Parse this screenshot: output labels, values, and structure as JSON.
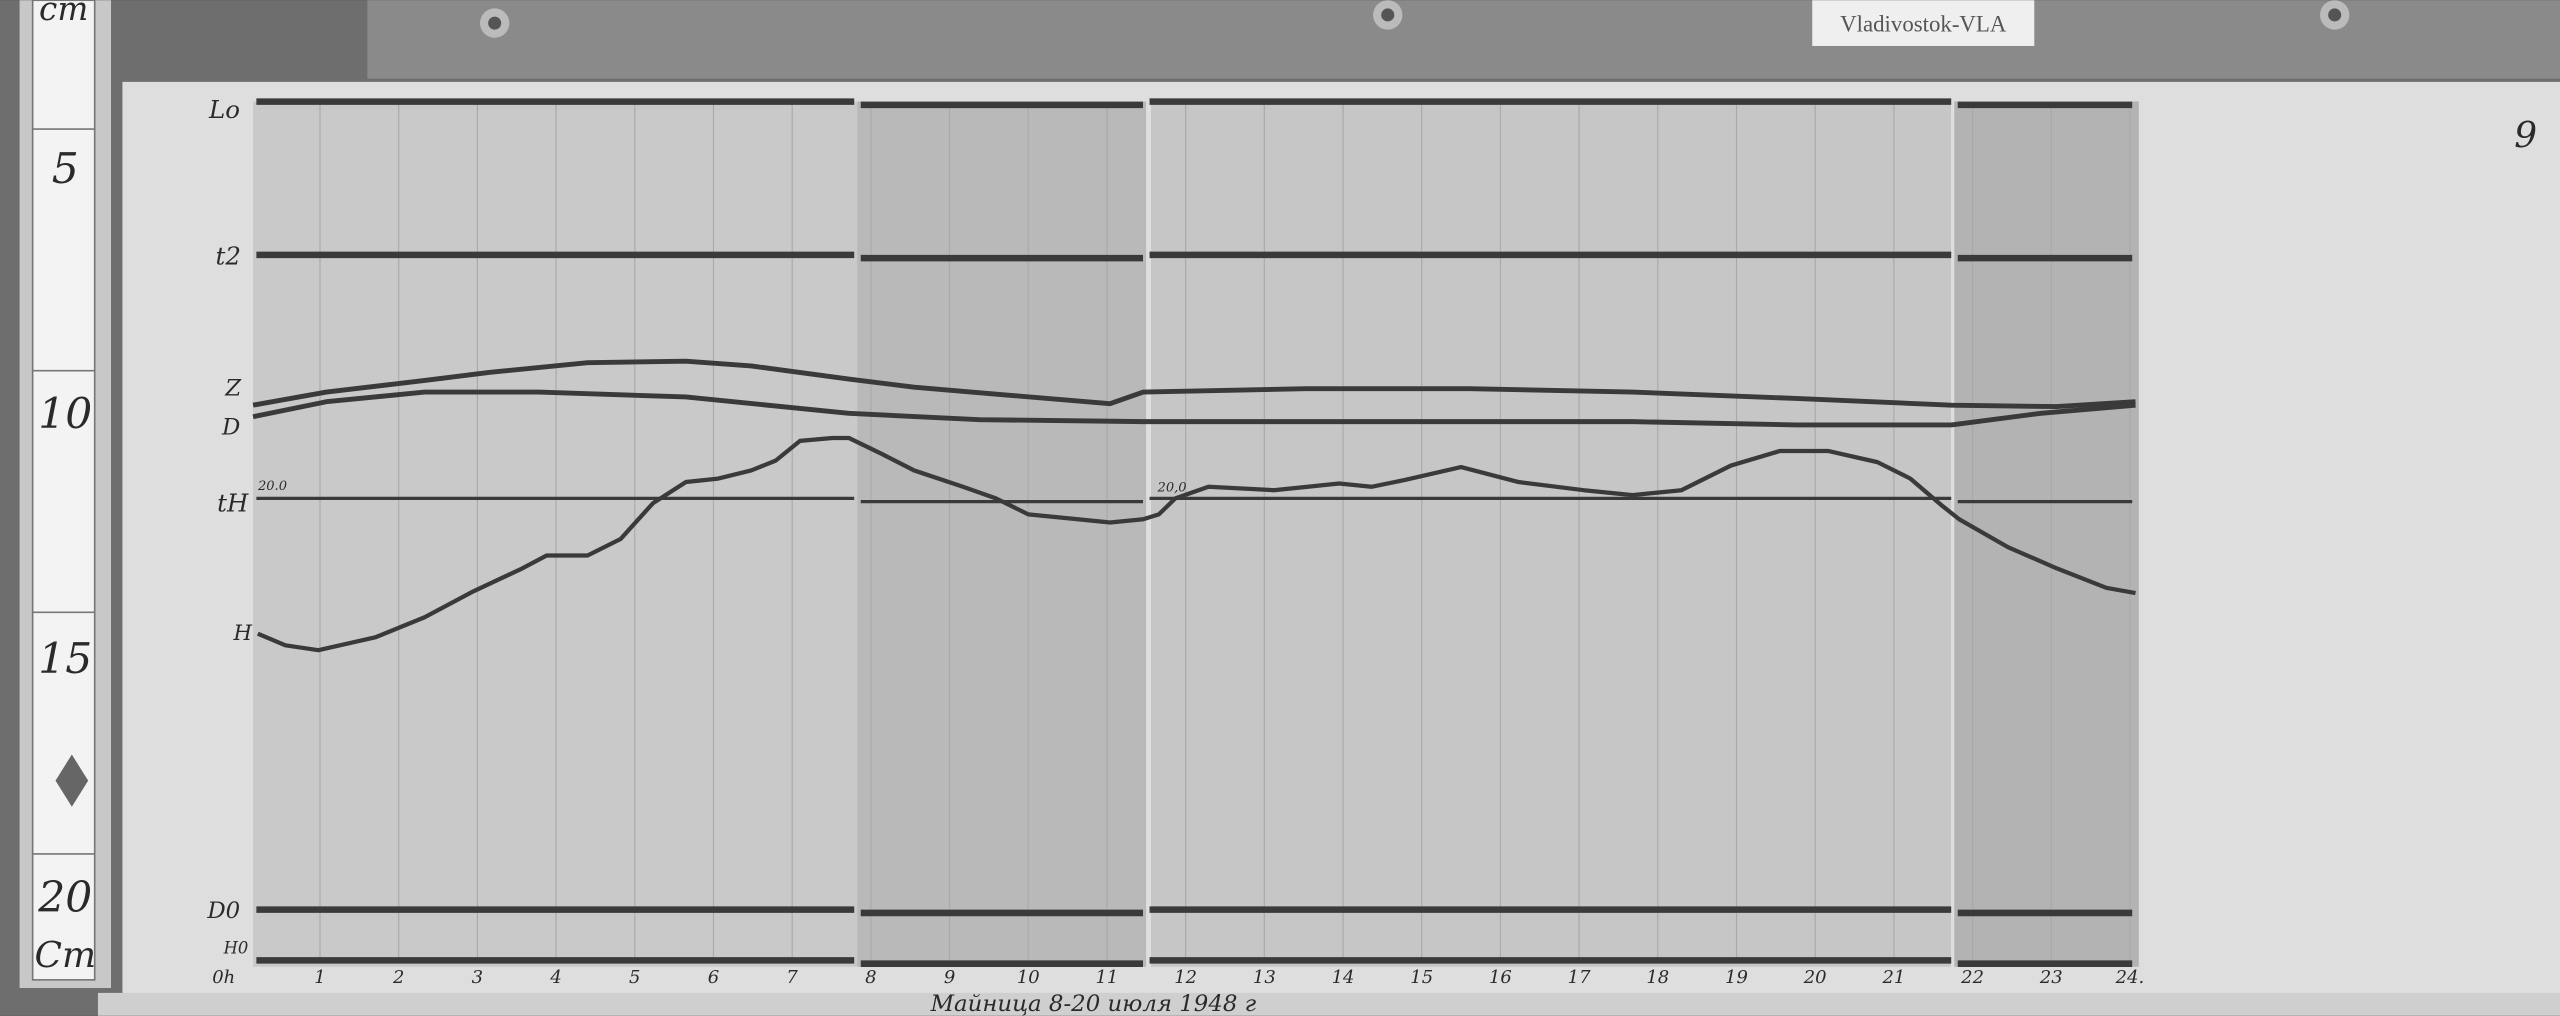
{
  "station_label": "Vladivostok-VLA",
  "sheet_number": "9",
  "ruler": {
    "unit_top": "cm",
    "unit_bottom": "Cm",
    "marks": [
      "5",
      "10",
      "15",
      "20"
    ]
  },
  "caption": "Мaйница 8-20 июля 1948 г",
  "colors": {
    "trace": "#3a3a3a",
    "paper": "#dcdcdc",
    "board": "#6e6e6e"
  },
  "chart_data": {
    "type": "line",
    "x_unit": "hour",
    "y_unit": "cm",
    "xlim": [
      0,
      24
    ],
    "ylim": [
      3,
      22
    ],
    "x_ticks": [
      "1",
      "2",
      "3",
      "4",
      "5",
      "6",
      "7",
      "8",
      "9",
      "10",
      "11",
      "12",
      "13",
      "14",
      "15",
      "16",
      "17",
      "18",
      "19",
      "20",
      "21",
      "22",
      "23",
      "24."
    ],
    "trace_labels": {
      "Lo": "Lo",
      "t2": "t2",
      "Z": "Z",
      "D": "D",
      "tH": "tH",
      "tH_value": "20.0",
      "tH_value2": "20,0",
      "H": "H",
      "D0": "D0",
      "H0": "H0",
      "time_label": "0h"
    },
    "baselines": [
      {
        "name": "Lo",
        "y": 3.72
      },
      {
        "name": "t2",
        "y": 6.89
      },
      {
        "name": "tH",
        "y": 11.93
      },
      {
        "name": "D0",
        "y": 20.44
      },
      {
        "name": "H0",
        "y": 21.49
      }
    ],
    "baseline_breaks": [
      7.83,
      11.5,
      21.77
    ],
    "series": [
      {
        "name": "H",
        "points": [
          [
            0.21,
            14.73
          ],
          [
            0.56,
            14.97
          ],
          [
            0.98,
            15.07
          ],
          [
            1.71,
            14.8
          ],
          [
            2.33,
            14.39
          ],
          [
            2.95,
            13.85
          ],
          [
            3.57,
            13.38
          ],
          [
            3.88,
            13.11
          ],
          [
            4.4,
            13.11
          ],
          [
            4.82,
            12.77
          ],
          [
            5.23,
            12.03
          ],
          [
            5.65,
            11.59
          ],
          [
            6.06,
            11.52
          ],
          [
            6.48,
            11.35
          ],
          [
            6.79,
            11.15
          ],
          [
            7.1,
            10.74
          ],
          [
            7.51,
            10.68
          ],
          [
            7.72,
            10.68
          ],
          [
            8.14,
            11.01
          ],
          [
            8.55,
            11.35
          ],
          [
            9.17,
            11.69
          ],
          [
            9.59,
            11.93
          ],
          [
            10.0,
            12.26
          ],
          [
            10.63,
            12.36
          ],
          [
            11.04,
            12.43
          ],
          [
            11.46,
            12.36
          ],
          [
            11.66,
            12.26
          ],
          [
            11.87,
            11.93
          ],
          [
            12.29,
            11.69
          ],
          [
            13.12,
            11.76
          ],
          [
            13.95,
            11.62
          ],
          [
            14.36,
            11.69
          ],
          [
            14.78,
            11.55
          ],
          [
            15.5,
            11.28
          ],
          [
            16.23,
            11.59
          ],
          [
            17.06,
            11.76
          ],
          [
            17.68,
            11.86
          ],
          [
            18.3,
            11.76
          ],
          [
            18.93,
            11.25
          ],
          [
            19.55,
            10.95
          ],
          [
            20.17,
            10.95
          ],
          [
            20.79,
            11.18
          ],
          [
            21.21,
            11.52
          ],
          [
            21.62,
            12.09
          ],
          [
            21.83,
            12.36
          ],
          [
            22.45,
            12.94
          ],
          [
            23.07,
            13.38
          ],
          [
            23.7,
            13.78
          ],
          [
            24.07,
            13.89
          ]
        ]
      },
      {
        "name": "Z",
        "points": [
          [
            0.15,
            10.0
          ],
          [
            1.08,
            9.73
          ],
          [
            2.33,
            9.49
          ],
          [
            3.16,
            9.32
          ],
          [
            4.4,
            9.12
          ],
          [
            5.65,
            9.09
          ],
          [
            6.48,
            9.19
          ],
          [
            7.72,
            9.46
          ],
          [
            8.55,
            9.63
          ],
          [
            9.8,
            9.8
          ],
          [
            11.04,
            9.97
          ],
          [
            11.46,
            9.73
          ],
          [
            13.53,
            9.66
          ],
          [
            15.61,
            9.66
          ],
          [
            17.68,
            9.73
          ],
          [
            19.76,
            9.86
          ],
          [
            21.73,
            10.0
          ],
          [
            23.07,
            10.03
          ],
          [
            24.07,
            9.93
          ]
        ]
      },
      {
        "name": "D",
        "points": [
          [
            0.15,
            10.24
          ],
          [
            1.08,
            9.93
          ],
          [
            2.33,
            9.73
          ],
          [
            3.78,
            9.73
          ],
          [
            5.65,
            9.83
          ],
          [
            7.72,
            10.17
          ],
          [
            9.38,
            10.3
          ],
          [
            11.46,
            10.34
          ],
          [
            13.53,
            10.34
          ],
          [
            17.68,
            10.34
          ],
          [
            19.76,
            10.41
          ],
          [
            21.73,
            10.41
          ],
          [
            22.87,
            10.17
          ],
          [
            24.07,
            10.0
          ]
        ]
      }
    ]
  }
}
